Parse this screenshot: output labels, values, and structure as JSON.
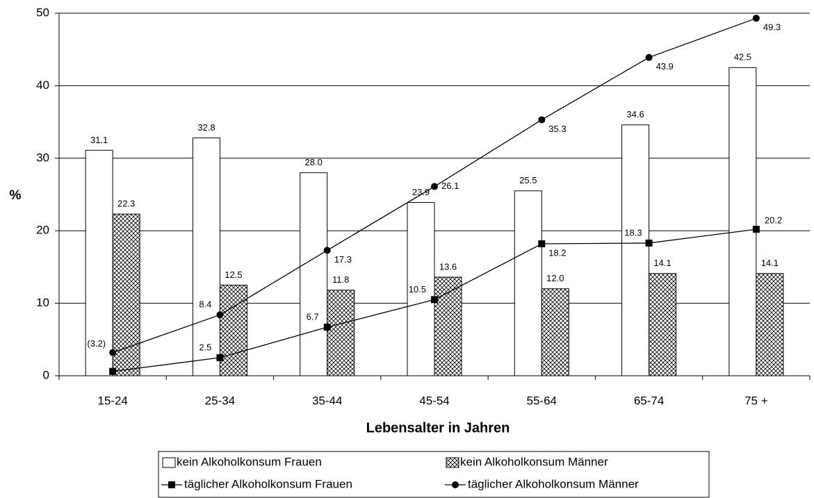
{
  "chart_data": {
    "type": "bar",
    "x_label": "Lebensalter in Jahren",
    "y_label": "%",
    "categories": [
      "15-24",
      "25-34",
      "35-44",
      "45-54",
      "55-64",
      "65-74",
      "75 +"
    ],
    "series": [
      {
        "name": "kein Alkoholkonsum Frauen",
        "type": "bar",
        "color": "#ffffff",
        "values": [
          31.1,
          32.8,
          28.0,
          23.9,
          25.5,
          34.6,
          42.5
        ],
        "value_labels": [
          "31.1",
          "32.8",
          "28.0",
          "23.9",
          "25.5",
          "34.6",
          "42.5"
        ]
      },
      {
        "name": "kein Alkoholkonsum Männer",
        "type": "bar",
        "color": "#ffffff",
        "hatch": true,
        "values": [
          22.3,
          12.5,
          11.8,
          13.6,
          12.0,
          14.1,
          14.1
        ],
        "value_labels": [
          "22.3",
          "12.5",
          "11.8",
          "13.6",
          "12.0",
          "14.1",
          "14.1"
        ]
      },
      {
        "name": "täglicher Alkoholkonsum Frauen",
        "type": "line",
        "marker": "square",
        "color": "#000000",
        "values": [
          0.6,
          2.5,
          6.7,
          10.5,
          18.2,
          18.3,
          20.2
        ],
        "value_labels": [
          null,
          "2.5",
          "6.7",
          "10.5",
          "18.2",
          "18.3",
          "20.2"
        ]
      },
      {
        "name": "täglicher Alkoholkonsum Männer",
        "type": "line",
        "marker": "circle",
        "color": "#000000",
        "values": [
          3.2,
          8.4,
          17.3,
          26.1,
          35.3,
          43.9,
          49.3
        ],
        "value_labels": [
          "(3.2)",
          "8.4",
          "17.3",
          "26.1",
          "35.3",
          "43.9",
          "49.3"
        ]
      }
    ],
    "ylim": [
      0,
      50
    ],
    "yticks": [
      0,
      10,
      20,
      30,
      40,
      50
    ],
    "grid": true
  }
}
